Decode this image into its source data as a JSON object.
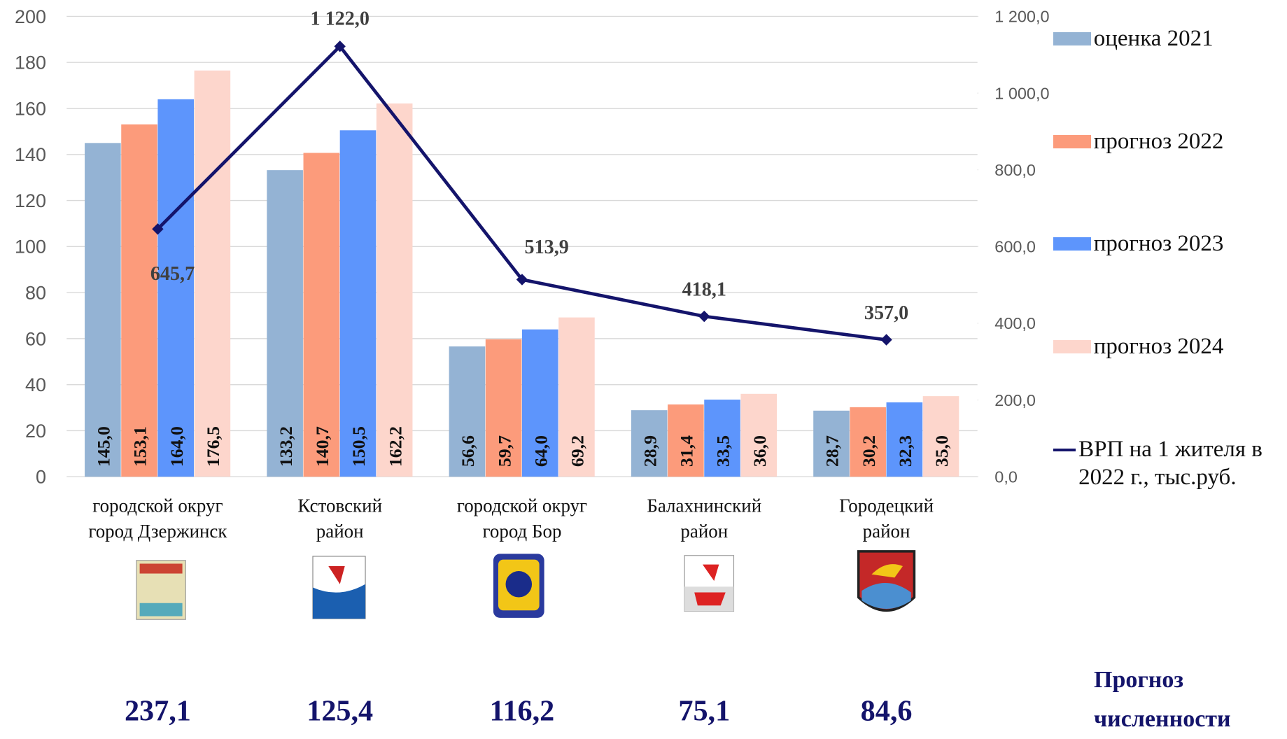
{
  "chart_data": {
    "type": "bar",
    "categories": [
      [
        "городской округ",
        "город Дзержинск"
      ],
      [
        "Кстовский",
        "район"
      ],
      [
        "городской округ",
        "город Бор"
      ],
      [
        "Балахнинский",
        "район"
      ],
      [
        "Городецкий",
        "район"
      ]
    ],
    "ylim": [
      0,
      200
    ],
    "yticks": [
      0,
      20,
      40,
      60,
      80,
      100,
      120,
      140,
      160,
      180,
      200
    ],
    "y2lim": [
      0,
      1200
    ],
    "y2ticks": [
      {
        "value": 0,
        "label": "0,0"
      },
      {
        "value": 200,
        "label": "200,0"
      },
      {
        "value": 400,
        "label": "400,0"
      },
      {
        "value": 600,
        "label": "600,0"
      },
      {
        "value": 800,
        "label": "800,0"
      },
      {
        "value": 1000,
        "label": "1 000,0"
      },
      {
        "value": 1200,
        "label": "1 200,0"
      }
    ],
    "grid": true,
    "series": [
      {
        "name": "оценка 2021",
        "color": "#94b3d4",
        "values": [
          145.0,
          133.2,
          56.6,
          28.9,
          28.7
        ],
        "value_labels": [
          "145,0",
          "133,2",
          "56,6",
          "28,9",
          "28,7"
        ]
      },
      {
        "name": "прогноз 2022",
        "color": "#fc9b7b",
        "values": [
          153.1,
          140.7,
          59.7,
          31.4,
          30.2
        ],
        "value_labels": [
          "153,1",
          "140,7",
          "59,7",
          "31,4",
          "30,2"
        ]
      },
      {
        "name": "прогноз 2023",
        "color": "#5d95fc",
        "values": [
          164.0,
          150.5,
          64.0,
          33.5,
          32.3
        ],
        "value_labels": [
          "164,0",
          "150,5",
          "64,0",
          "33,5",
          "32,3"
        ]
      },
      {
        "name": "прогноз 2024",
        "color": "#fdd6cc",
        "values": [
          176.5,
          162.2,
          69.2,
          36.0,
          35.0
        ],
        "value_labels": [
          "176,5",
          "162,2",
          "69,2",
          "36,0",
          "35,0"
        ]
      },
      {
        "name": "ВРП на 1 жителя в 2022 г., тыс.руб.",
        "type": "line",
        "axis": "y2",
        "color": "#14146b",
        "values": [
          645.7,
          1122.0,
          513.9,
          418.1,
          357.0
        ],
        "value_labels": [
          "645,7",
          "1 122,0",
          "513,9",
          "418,1",
          "357,0"
        ]
      }
    ],
    "legend": "right"
  },
  "population": {
    "title": "Прогноз численности",
    "values": [
      237.1,
      125.4,
      116.2,
      75.1,
      84.6
    ],
    "value_labels": [
      "237,1",
      "125,4",
      "116,2",
      "75,1",
      "84,6"
    ]
  }
}
